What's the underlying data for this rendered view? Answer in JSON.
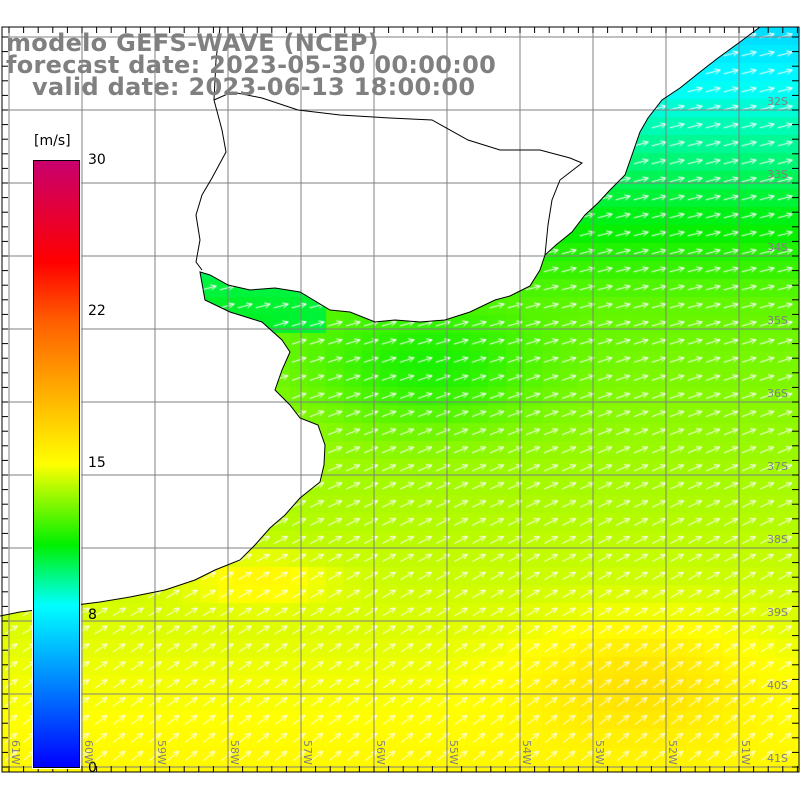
{
  "title": {
    "line1": "modelo GEFS-WAVE (NCEP)",
    "line2": "forecast date: 2023-05-30 00:00:00",
    "line3": "   valid date: 2023-06-13 18:00:00"
  },
  "colorbar": {
    "unit": "[m/s]",
    "ticks": [
      "30",
      "22",
      "15",
      "8",
      "0"
    ],
    "colors": {
      "0": "#0000ff",
      "8": "#00ffff",
      "11": "#00f000",
      "15": "#ffff00",
      "22": "#ff6000",
      "25": "#ff0000",
      "30": "#c8006e"
    }
  },
  "lat_labels": [
    "32S",
    "33S",
    "34S",
    "35S",
    "36S",
    "37S",
    "38S",
    "39S",
    "40S",
    "41S"
  ],
  "lon_labels": [
    "61W",
    "60W",
    "59W",
    "58W",
    "57W",
    "56W",
    "55W",
    "54W",
    "53W",
    "52W",
    "51W"
  ],
  "field": {
    "variable": "wind speed",
    "arrow_direction": "northeast"
  }
}
